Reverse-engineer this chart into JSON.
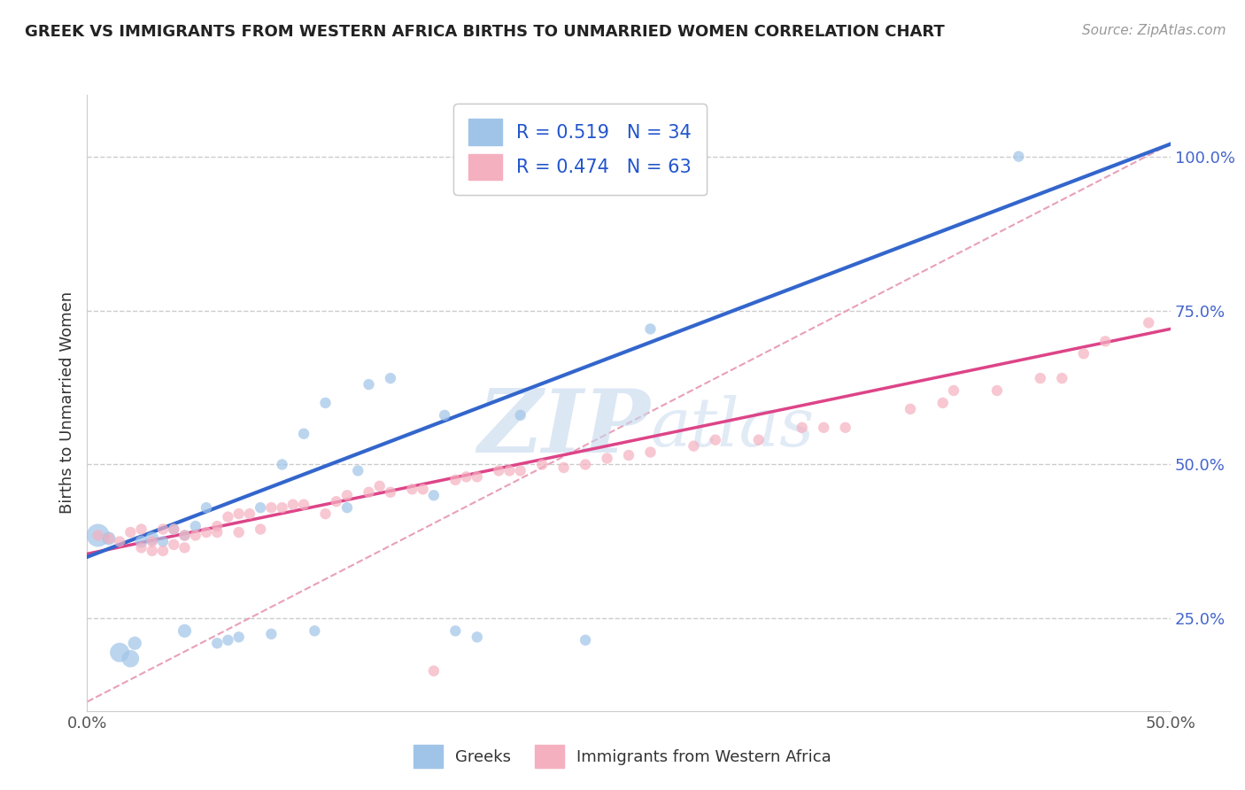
{
  "title": "GREEK VS IMMIGRANTS FROM WESTERN AFRICA BIRTHS TO UNMARRIED WOMEN CORRELATION CHART",
  "source": "Source: ZipAtlas.com",
  "ylabel": "Births to Unmarried Women",
  "xlim": [
    0.0,
    0.5
  ],
  "ylim": [
    0.1,
    1.1
  ],
  "xtick_labels": [
    "0.0%",
    "",
    "",
    "",
    "",
    "50.0%"
  ],
  "xtick_vals": [
    0.0,
    0.1,
    0.2,
    0.3,
    0.4,
    0.5
  ],
  "ytick_labels": [
    "25.0%",
    "50.0%",
    "75.0%",
    "100.0%"
  ],
  "ytick_vals": [
    0.25,
    0.5,
    0.75,
    1.0
  ],
  "grid_color": "#cccccc",
  "background_color": "#ffffff",
  "blue_color": "#a0c4e8",
  "pink_color": "#f5b0c0",
  "blue_line_color": "#3366cc",
  "pink_line_color": "#dd4488",
  "diag_color": "#e8a0b8",
  "legend_blue_label": "R = 0.519   N = 34",
  "legend_pink_label": "R = 0.474   N = 63",
  "watermark_zip": "ZIP",
  "watermark_atlas": "atlas",
  "blue_R": 0.519,
  "blue_N": 34,
  "pink_R": 0.474,
  "pink_N": 63,
  "blue_scatter_x": [
    0.005,
    0.01,
    0.015,
    0.02,
    0.022,
    0.025,
    0.03,
    0.035,
    0.04,
    0.045,
    0.045,
    0.05,
    0.055,
    0.06,
    0.065,
    0.07,
    0.08,
    0.085,
    0.09,
    0.1,
    0.105,
    0.11,
    0.12,
    0.125,
    0.13,
    0.14,
    0.16,
    0.165,
    0.17,
    0.18,
    0.2,
    0.23,
    0.26,
    0.43
  ],
  "blue_scatter_y": [
    0.385,
    0.38,
    0.195,
    0.185,
    0.21,
    0.375,
    0.38,
    0.375,
    0.395,
    0.385,
    0.23,
    0.4,
    0.43,
    0.21,
    0.215,
    0.22,
    0.43,
    0.225,
    0.5,
    0.55,
    0.23,
    0.6,
    0.43,
    0.49,
    0.63,
    0.64,
    0.45,
    0.58,
    0.23,
    0.22,
    0.58,
    0.215,
    0.72,
    1.0
  ],
  "blue_scatter_sizes": [
    350,
    120,
    250,
    200,
    120,
    100,
    120,
    80,
    80,
    80,
    120,
    80,
    80,
    80,
    80,
    80,
    80,
    80,
    80,
    80,
    80,
    80,
    80,
    80,
    80,
    80,
    80,
    80,
    80,
    80,
    80,
    80,
    80,
    80
  ],
  "pink_scatter_x": [
    0.005,
    0.01,
    0.015,
    0.02,
    0.025,
    0.025,
    0.03,
    0.03,
    0.035,
    0.035,
    0.04,
    0.04,
    0.045,
    0.045,
    0.05,
    0.055,
    0.06,
    0.06,
    0.065,
    0.07,
    0.07,
    0.075,
    0.08,
    0.085,
    0.09,
    0.095,
    0.1,
    0.11,
    0.115,
    0.12,
    0.13,
    0.135,
    0.14,
    0.15,
    0.155,
    0.16,
    0.17,
    0.175,
    0.18,
    0.19,
    0.195,
    0.2,
    0.21,
    0.22,
    0.23,
    0.24,
    0.25,
    0.26,
    0.28,
    0.29,
    0.31,
    0.33,
    0.34,
    0.35,
    0.38,
    0.395,
    0.4,
    0.42,
    0.44,
    0.45,
    0.46,
    0.47,
    0.49
  ],
  "pink_scatter_y": [
    0.385,
    0.38,
    0.375,
    0.39,
    0.365,
    0.395,
    0.36,
    0.375,
    0.36,
    0.395,
    0.37,
    0.395,
    0.365,
    0.385,
    0.385,
    0.39,
    0.39,
    0.4,
    0.415,
    0.39,
    0.42,
    0.42,
    0.395,
    0.43,
    0.43,
    0.435,
    0.435,
    0.42,
    0.44,
    0.45,
    0.455,
    0.465,
    0.455,
    0.46,
    0.46,
    0.165,
    0.475,
    0.48,
    0.48,
    0.49,
    0.49,
    0.49,
    0.5,
    0.495,
    0.5,
    0.51,
    0.515,
    0.52,
    0.53,
    0.54,
    0.54,
    0.56,
    0.56,
    0.56,
    0.59,
    0.6,
    0.62,
    0.62,
    0.64,
    0.64,
    0.68,
    0.7,
    0.73
  ],
  "pink_scatter_sizes": [
    80,
    80,
    80,
    80,
    80,
    80,
    80,
    80,
    80,
    80,
    80,
    80,
    80,
    80,
    80,
    80,
    80,
    80,
    80,
    80,
    80,
    80,
    80,
    80,
    80,
    80,
    80,
    80,
    80,
    80,
    80,
    80,
    80,
    80,
    80,
    80,
    80,
    80,
    80,
    80,
    80,
    80,
    80,
    80,
    80,
    80,
    80,
    80,
    80,
    80,
    80,
    80,
    80,
    80,
    80,
    80,
    80,
    80,
    80,
    80,
    80,
    80,
    80
  ],
  "blue_line_x": [
    0.0,
    0.5
  ],
  "blue_line_y": [
    0.35,
    1.02
  ],
  "pink_line_x": [
    0.0,
    0.5
  ],
  "pink_line_y": [
    0.355,
    0.72
  ],
  "diag_line_x": [
    0.0,
    0.5
  ],
  "diag_line_y": [
    0.115,
    1.02
  ]
}
